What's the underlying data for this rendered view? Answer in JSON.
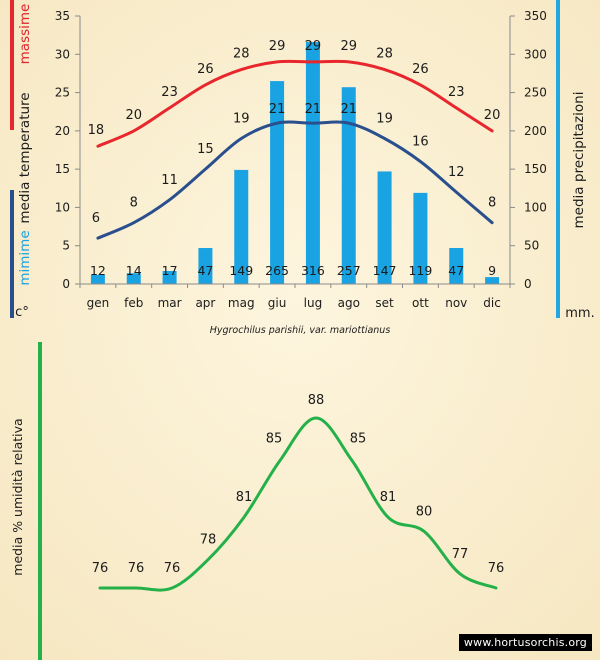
{
  "caption": "Hygrochilus parishii, var. mariottianus",
  "credit": "www.hortusorchis.org",
  "colors": {
    "background": "#faf0d2",
    "max_line": "#e8262d",
    "min_line": "#2a4f8d",
    "precip_bars": "#1aa3e3",
    "humidity_line": "#25b149",
    "axis_label_max": "#e0232d",
    "axis_label_min": "#1aa3e3",
    "axis_label_text": "#1c1c1c",
    "precip_axis_bar": "#22a8e0"
  },
  "chart_data": [
    {
      "type": "line",
      "subtype": "climograph",
      "categories": [
        "gen",
        "feb",
        "mar",
        "apr",
        "mag",
        "giu",
        "lug",
        "ago",
        "set",
        "ott",
        "nov",
        "dic"
      ],
      "series": [
        {
          "name": "massime",
          "axis": "left",
          "values": [
            18,
            20,
            23,
            26,
            28,
            29,
            29,
            29,
            28,
            26,
            23,
            20
          ]
        },
        {
          "name": "mimime",
          "axis": "left",
          "values": [
            6,
            8,
            11,
            15,
            19,
            21,
            21,
            21,
            19,
            16,
            12,
            8
          ]
        },
        {
          "name": "media precipitazioni",
          "type": "bar",
          "axis": "right",
          "values": [
            12,
            14,
            17,
            47,
            149,
            265,
            316,
            257,
            147,
            119,
            47,
            9
          ]
        }
      ],
      "left_axis": {
        "label_parts": [
          "massime",
          "media temperature",
          "mimime"
        ],
        "unit": "c°",
        "ylim": [
          0,
          35
        ],
        "ticks": [
          0,
          5,
          10,
          15,
          20,
          25,
          30,
          35
        ]
      },
      "right_axis": {
        "label": "media precipitazioni",
        "unit": "mm.",
        "ylim": [
          0,
          350
        ],
        "ticks": [
          0,
          50,
          100,
          150,
          200,
          250,
          300,
          350
        ]
      },
      "grid": false,
      "legend": "none"
    },
    {
      "type": "line",
      "categories": [
        "gen",
        "feb",
        "mar",
        "apr",
        "mag",
        "giu",
        "lug",
        "ago",
        "set",
        "ott",
        "nov",
        "dic"
      ],
      "series": [
        {
          "name": "media % umidità relativa",
          "values": [
            76,
            76,
            76,
            78,
            81,
            85,
            88,
            85,
            81,
            80,
            77,
            76
          ]
        }
      ],
      "ylabel": "media % umidità relativa",
      "x_ticks_visible": false,
      "y_ticks_visible": false,
      "grid": false,
      "legend": "none"
    }
  ]
}
